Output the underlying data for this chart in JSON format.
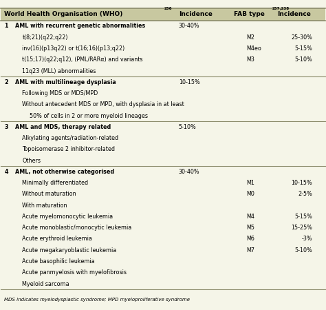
{
  "title_left": "World Health Organisation (WHO)",
  "title_left_super": "236",
  "title_inc1": "Incidence",
  "title_fab": "FAB type",
  "title_fab_super": "237,238",
  "title_inc2": "Incidence",
  "background_color": "#f5f5e8",
  "header_color": "#c8c8a0",
  "line_color": "#8B8B6B",
  "rows": [
    {
      "num": "1",
      "indent": 0,
      "who": "AML with recurrent genetic abnormalities",
      "inc1": "30-40%",
      "fab": "",
      "inc2": "",
      "bold_who": true
    },
    {
      "num": "",
      "indent": 1,
      "who": "t(8;21)(q22;q22)",
      "inc1": "",
      "fab": "M2",
      "inc2": "25-30%",
      "bold_who": false
    },
    {
      "num": "",
      "indent": 1,
      "who": "inv(16)(p13q22) or t(16;16)(p13;q22)",
      "inc1": "",
      "fab": "M4eo",
      "inc2": "5-15%",
      "bold_who": false
    },
    {
      "num": "",
      "indent": 1,
      "who": "t(15;17)(q22;q12), (PML/RARα) and variants",
      "inc1": "",
      "fab": "M3",
      "inc2": "5-10%",
      "bold_who": false
    },
    {
      "num": "",
      "indent": 1,
      "who": "11q23 (MLL) abnormalities",
      "inc1": "",
      "fab": "",
      "inc2": "",
      "bold_who": false
    },
    {
      "num": "2",
      "indent": 0,
      "who": "AML with multilineage dysplasia",
      "inc1": "10-15%",
      "fab": "",
      "inc2": "",
      "bold_who": true,
      "section_break_above": true
    },
    {
      "num": "",
      "indent": 1,
      "who": "Following MDS or MDS/MPD",
      "inc1": "",
      "fab": "",
      "inc2": "",
      "bold_who": false
    },
    {
      "num": "",
      "indent": 1,
      "who": "Without antecedent MDS or MPD, with dysplasia in at least",
      "inc1": "",
      "fab": "",
      "inc2": "",
      "bold_who": false
    },
    {
      "num": "",
      "indent": 2,
      "who": "50% of cells in 2 or more myeloid lineages",
      "inc1": "",
      "fab": "",
      "inc2": "",
      "bold_who": false
    },
    {
      "num": "3",
      "indent": 0,
      "who": "AML and MDS, therapy related",
      "inc1": "5-10%",
      "fab": "",
      "inc2": "",
      "bold_who": true,
      "section_break_above": true
    },
    {
      "num": "",
      "indent": 1,
      "who": "Alkylating agents/radiation-related",
      "inc1": "",
      "fab": "",
      "inc2": "",
      "bold_who": false
    },
    {
      "num": "",
      "indent": 1,
      "who": "Topoisomerase 2 inhibitor-related",
      "inc1": "",
      "fab": "",
      "inc2": "",
      "bold_who": false
    },
    {
      "num": "",
      "indent": 1,
      "who": "Others",
      "inc1": "",
      "fab": "",
      "inc2": "",
      "bold_who": false
    },
    {
      "num": "4",
      "indent": 0,
      "who": "AML, not otherwise categorised",
      "inc1": "30-40%",
      "fab": "",
      "inc2": "",
      "bold_who": true,
      "section_break_above": true
    },
    {
      "num": "",
      "indent": 1,
      "who": "Minimally differentiated",
      "inc1": "",
      "fab": "M1",
      "inc2": "10-15%",
      "bold_who": false
    },
    {
      "num": "",
      "indent": 1,
      "who": "Without maturation",
      "inc1": "",
      "fab": "M0",
      "inc2": "2-5%",
      "bold_who": false
    },
    {
      "num": "",
      "indent": 1,
      "who": "With maturation",
      "inc1": "",
      "fab": "",
      "inc2": "",
      "bold_who": false
    },
    {
      "num": "",
      "indent": 1,
      "who": "Acute myelomonocytic leukemia",
      "inc1": "",
      "fab": "M4",
      "inc2": "5-15%",
      "bold_who": false
    },
    {
      "num": "",
      "indent": 1,
      "who": "Acute monoblastic/monocytic leukemia",
      "inc1": "",
      "fab": "M5",
      "inc2": "15-25%",
      "bold_who": false
    },
    {
      "num": "",
      "indent": 1,
      "who": "Acute erythroid leukemia",
      "inc1": "",
      "fab": "M6",
      "inc2": "-3%",
      "bold_who": false
    },
    {
      "num": "",
      "indent": 1,
      "who": "Acute megakaryoblastic leukemia",
      "inc1": "",
      "fab": "M7",
      "inc2": "5-10%",
      "bold_who": false
    },
    {
      "num": "",
      "indent": 1,
      "who": "Acute basophilic leukemia",
      "inc1": "",
      "fab": "",
      "inc2": "",
      "bold_who": false
    },
    {
      "num": "",
      "indent": 1,
      "who": "Acute panmyelosis with myelofibrosis",
      "inc1": "",
      "fab": "",
      "inc2": "",
      "bold_who": false
    },
    {
      "num": "",
      "indent": 1,
      "who": "Myeloid sarcoma",
      "inc1": "",
      "fab": "",
      "inc2": "",
      "bold_who": false
    }
  ],
  "footnote": "MDS indicates myelodysplastic syndrome; MPD myeloproliferative syndrome"
}
